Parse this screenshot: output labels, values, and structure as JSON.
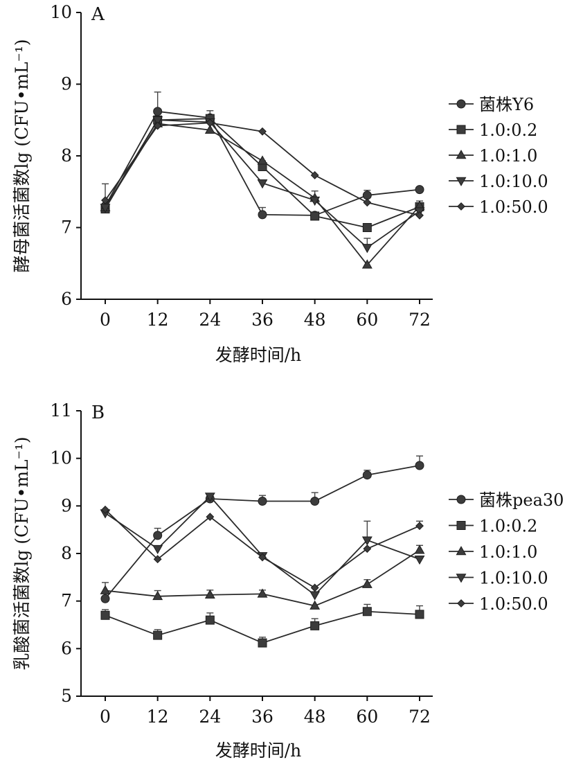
{
  "chart_data": [
    {
      "type": "line",
      "panel_label": "A",
      "ylabel": "酵母菌活菌数lg (CFU•mL⁻¹)",
      "xlabel": "发酵时间/h",
      "x": [
        0,
        12,
        24,
        36,
        48,
        60,
        72
      ],
      "ylim": [
        6,
        10
      ],
      "yticks": [
        6,
        7,
        8,
        9,
        10
      ],
      "legend_position": "right",
      "series": [
        {
          "name": "菌株Y6",
          "marker": "circle",
          "values": [
            7.3,
            8.62,
            8.53,
            7.18,
            7.17,
            7.45,
            7.53
          ],
          "errors": [
            0,
            0.27,
            0.1,
            0.1,
            0,
            0.07,
            0
          ]
        },
        {
          "name": "1.0:0.2",
          "marker": "square",
          "values": [
            7.26,
            8.5,
            8.52,
            7.85,
            7.16,
            7.0,
            7.29
          ],
          "errors": [
            0,
            0,
            0,
            0.08,
            0,
            0,
            0.08
          ]
        },
        {
          "name": "1.0:1.0",
          "marker": "triangle-up",
          "values": [
            7.28,
            8.45,
            8.36,
            7.93,
            7.41,
            6.48,
            7.3
          ],
          "errors": [
            0,
            0,
            0,
            0,
            0.1,
            0,
            0
          ]
        },
        {
          "name": "1.0:10.0",
          "marker": "triangle-down",
          "values": [
            7.28,
            8.5,
            8.47,
            7.62,
            7.38,
            6.72,
            7.23
          ],
          "errors": [
            0,
            0,
            0,
            0,
            0,
            0.13,
            0
          ]
        },
        {
          "name": "1.0:50.0",
          "marker": "diamond",
          "values": [
            7.38,
            8.42,
            8.46,
            8.34,
            7.73,
            7.35,
            7.17
          ],
          "errors": [
            0.23,
            0,
            0,
            0,
            0,
            0,
            0
          ]
        }
      ]
    },
    {
      "type": "line",
      "panel_label": "B",
      "ylabel": "乳酸菌活菌数lg (CFU•mL⁻¹)",
      "xlabel": "发酵时间/h",
      "x": [
        0,
        12,
        24,
        36,
        48,
        60,
        72
      ],
      "ylim": [
        5,
        11
      ],
      "yticks": [
        5,
        6,
        7,
        8,
        9,
        10,
        11
      ],
      "legend_position": "right",
      "series": [
        {
          "name": "菌株pea30",
          "marker": "circle",
          "values": [
            7.05,
            8.38,
            9.15,
            9.1,
            9.1,
            9.65,
            9.85
          ],
          "errors": [
            0,
            0.15,
            0,
            0.12,
            0.18,
            0.1,
            0.2
          ]
        },
        {
          "name": "1.0:0.2",
          "marker": "square",
          "values": [
            6.7,
            6.28,
            6.6,
            6.12,
            6.48,
            6.78,
            6.72
          ],
          "errors": [
            0.12,
            0.12,
            0.15,
            0.12,
            0.15,
            0.15,
            0.18
          ]
        },
        {
          "name": "1.0:1.0",
          "marker": "triangle-up",
          "values": [
            7.22,
            7.1,
            7.13,
            7.15,
            6.9,
            7.35,
            8.07
          ],
          "errors": [
            0.17,
            0.12,
            0.1,
            0.08,
            0,
            0.1,
            0.1
          ]
        },
        {
          "name": "1.0:10.0",
          "marker": "triangle-down",
          "values": [
            8.85,
            8.1,
            9.2,
            7.95,
            7.13,
            8.28,
            7.88
          ],
          "errors": [
            0,
            0,
            0,
            0,
            0,
            0.4,
            0
          ]
        },
        {
          "name": "1.0:50.0",
          "marker": "diamond",
          "values": [
            8.92,
            7.88,
            8.77,
            7.92,
            7.28,
            8.1,
            8.58
          ],
          "errors": [
            0,
            0,
            0,
            0,
            0,
            0,
            0.1
          ]
        }
      ]
    }
  ]
}
